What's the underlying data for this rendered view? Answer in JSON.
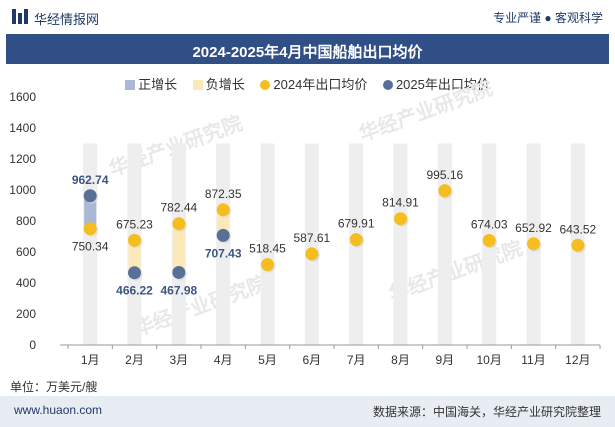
{
  "header": {
    "brand": "华经情报网",
    "slogan": "专业严谨 ● 客观科学"
  },
  "footer": {
    "site": "www.huaon.com",
    "source": "数据来源：中国海关，华经产业研究院整理"
  },
  "watermarks": [
    "华经产业研究院",
    "www.huaon.com"
  ],
  "colors": {
    "increase": "#a9b8d6",
    "decrease": "#fbe9b8",
    "series2024": "#f5bd1f",
    "series2025": "#5a6f96",
    "grid_bar": "#eeeeee"
  },
  "chart_data": {
    "type": "scatter",
    "title": "2024-2025年4月中国船舶出口均价",
    "unit": "单位：万美元/艘",
    "categories": [
      "1月",
      "2月",
      "3月",
      "4月",
      "5月",
      "6月",
      "7月",
      "8月",
      "9月",
      "10月",
      "11月",
      "12月"
    ],
    "ylim": [
      0,
      1600
    ],
    "yticks": [
      0,
      200,
      400,
      600,
      800,
      1000,
      1200,
      1400,
      1600
    ],
    "legend": [
      "正增长",
      "负增长",
      "2024年出口均价",
      "2025年出口均价"
    ],
    "legend_position": "top",
    "series": [
      {
        "name": "2024年出口均价",
        "values": [
          750.34,
          675.23,
          782.44,
          872.35,
          518.45,
          587.61,
          679.91,
          814.91,
          995.16,
          674.03,
          652.92,
          643.52
        ]
      },
      {
        "name": "2025年出口均价",
        "values": [
          962.74,
          466.22,
          467.98,
          707.43,
          null,
          null,
          null,
          null,
          null,
          null,
          null,
          null
        ]
      }
    ]
  }
}
